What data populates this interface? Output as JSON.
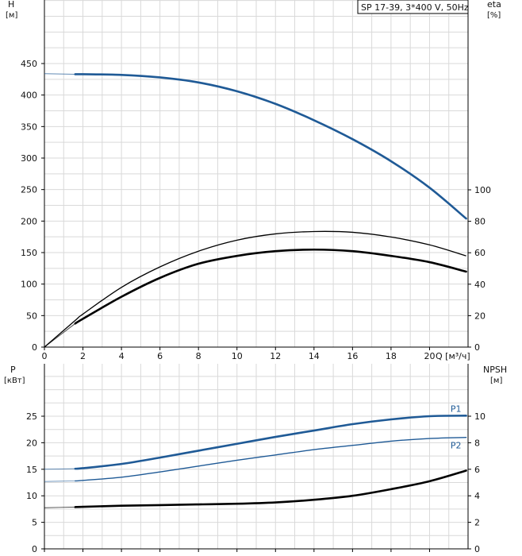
{
  "chart_data": [
    {
      "type": "line",
      "title": "SP 17-39, 3*400 V, 50Hz",
      "xlabel": "Q [м³/ч]",
      "ylabel": "H",
      "ylabel_unit": "[м]",
      "y2label": "eta",
      "y2label_unit": "[%]",
      "xlim": [
        0,
        22
      ],
      "ylim": [
        0,
        450
      ],
      "y2lim": [
        0,
        100
      ],
      "xticks": [
        0,
        2,
        4,
        6,
        8,
        10,
        12,
        14,
        16,
        18,
        20
      ],
      "yticks": [
        0,
        50,
        100,
        150,
        200,
        250,
        300,
        350,
        400,
        450
      ],
      "y2ticks": [
        0,
        20,
        40,
        60,
        80,
        100
      ],
      "grid": true,
      "series": [
        {
          "axis": "y",
          "color": "#1f5a96",
          "x": [
            0,
            1.6,
            2,
            4,
            6,
            8,
            10,
            12,
            14,
            16,
            18,
            20,
            21.9
          ],
          "y": [
            434,
            433,
            433,
            432,
            428,
            420,
            406,
            386,
            360,
            330,
            295,
            253,
            204
          ],
          "style": "operating-range-thick",
          "thin_segment_end": 1.6
        },
        {
          "axis": "y2",
          "color": "#000000",
          "x": [
            0,
            1.6,
            2,
            4,
            6,
            8,
            10,
            12,
            14,
            16,
            18,
            20,
            21.9
          ],
          "y": [
            0,
            17,
            21,
            38,
            51,
            61,
            68,
            72,
            73.5,
            73,
            70,
            65,
            58
          ],
          "style": "thin"
        },
        {
          "axis": "y2",
          "color": "#000000",
          "x": [
            0,
            1.6,
            2,
            4,
            6,
            8,
            10,
            12,
            14,
            16,
            18,
            20,
            21.9
          ],
          "y": [
            0,
            15,
            18,
            32,
            44,
            53,
            58,
            61,
            62,
            61,
            58,
            54,
            48
          ],
          "style": "operating-range-thick",
          "thin_segment_end": 1.6
        }
      ]
    },
    {
      "type": "line",
      "ylabel": "P",
      "ylabel_unit": "[кВт]",
      "y2label": "NPSH",
      "y2label_unit": "[м]",
      "xlim": [
        0,
        22
      ],
      "ylim": [
        0,
        30
      ],
      "y2lim": [
        0,
        12
      ],
      "xticks": [
        0,
        2,
        4,
        6,
        8,
        10,
        12,
        14,
        16,
        18,
        20
      ],
      "yticks": [
        0,
        5,
        10,
        15,
        20,
        25
      ],
      "y2ticks": [
        0,
        2,
        4,
        6,
        8,
        10
      ],
      "grid": true,
      "series": [
        {
          "name": "P1",
          "axis": "y",
          "color": "#1f5a96",
          "x": [
            0,
            1.6,
            2,
            4,
            6,
            8,
            10,
            12,
            14,
            16,
            18,
            20,
            21.9
          ],
          "y": [
            15,
            15.1,
            15.2,
            16,
            17.2,
            18.5,
            19.8,
            21.1,
            22.3,
            23.5,
            24.4,
            25,
            25.1
          ],
          "style": "operating-range-thick",
          "thin_segment_end": 1.6
        },
        {
          "name": "P2",
          "axis": "y",
          "color": "#1f5a96",
          "x": [
            0,
            1.6,
            2,
            4,
            6,
            8,
            10,
            12,
            14,
            16,
            18,
            20,
            21.9
          ],
          "y": [
            12.7,
            12.8,
            12.9,
            13.5,
            14.5,
            15.6,
            16.7,
            17.7,
            18.7,
            19.5,
            20.3,
            20.8,
            21
          ],
          "style": "operating-range-thin",
          "thin_segment_end": 1.6
        },
        {
          "axis": "y2",
          "color": "#000000",
          "x": [
            0,
            1.6,
            2,
            4,
            6,
            8,
            10,
            12,
            14,
            16,
            18,
            20,
            21.9
          ],
          "y": [
            3.1,
            3.15,
            3.17,
            3.25,
            3.3,
            3.35,
            3.4,
            3.5,
            3.7,
            4,
            4.5,
            5.1,
            5.9
          ],
          "style": "operating-range-thick",
          "thin_segment_end": 1.6
        }
      ]
    }
  ]
}
